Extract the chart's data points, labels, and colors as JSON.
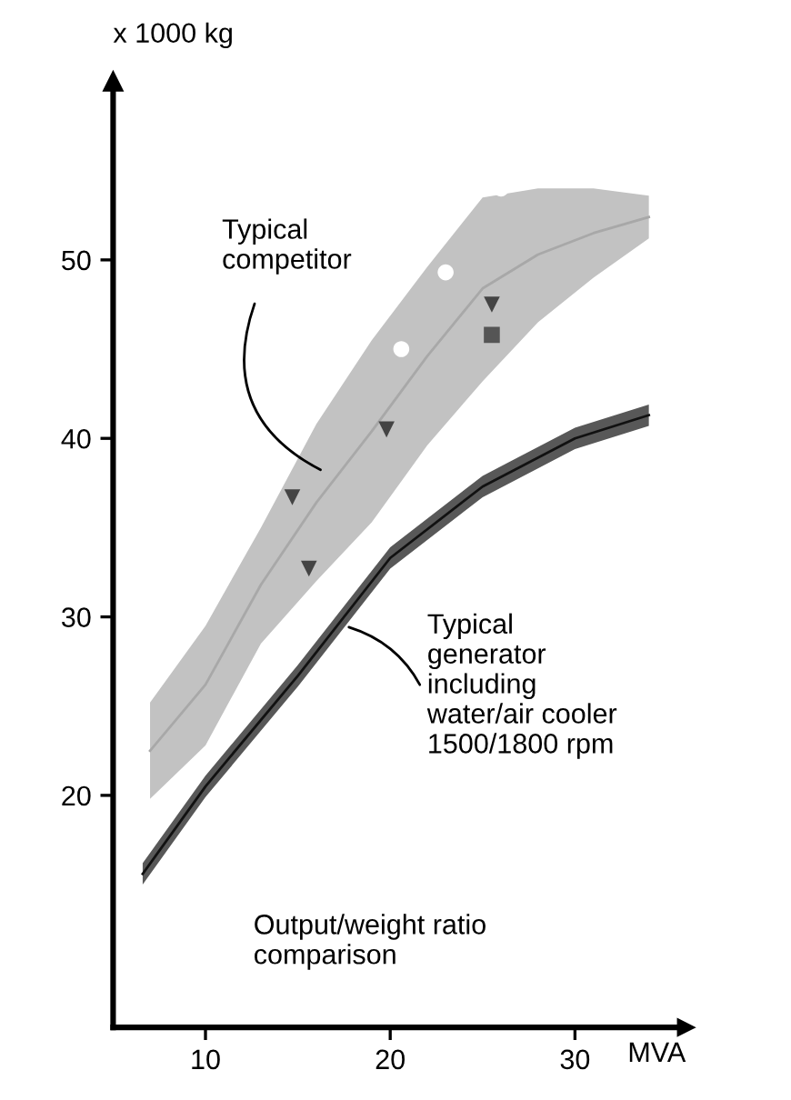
{
  "chart_data": {
    "type": "line",
    "ylabel": "x 1000 kg",
    "xlabel": "MVA",
    "x": [
      7,
      10,
      13,
      16,
      19,
      22,
      25,
      28,
      31,
      34
    ],
    "xlim": [
      5,
      36
    ],
    "ylim": [
      7,
      60
    ],
    "xticks": [
      10,
      20,
      30
    ],
    "yticks": [
      20,
      30,
      40,
      50
    ],
    "grid": false,
    "series": [
      {
        "color": "#a8a8a8",
        "values": [
          22.5,
          26.2,
          31.8,
          36.4,
          40.4,
          44.6,
          48.4,
          50.3,
          51.5,
          52.4
        ],
        "lower": [
          19.8,
          22.8,
          28.5,
          32,
          35.3,
          39.6,
          43.2,
          46.5,
          49,
          51.2
        ],
        "upper": [
          25.2,
          29.5,
          35,
          40.8,
          45.5,
          49.6,
          53.5,
          54,
          54,
          53.6
        ]
      },
      {
        "color": "#111111",
        "x": [
          6.6,
          10,
          15,
          20,
          25,
          30,
          34
        ],
        "values": [
          15.6,
          20.5,
          26.7,
          33.3,
          37.3,
          40,
          41.3
        ],
        "lower": [
          15,
          19.9,
          26.1,
          32.7,
          36.7,
          39.4,
          40.7
        ],
        "upper": [
          16.2,
          21.1,
          27.3,
          33.9,
          37.9,
          40.6,
          41.9
        ]
      },
      {
        "type": "scatter",
        "marker": "triangle",
        "color": "#444444",
        "x": [
          14.7,
          15.6,
          19.8,
          25.5
        ],
        "values": [
          36.7,
          32.7,
          40.5,
          47.5
        ]
      },
      {
        "type": "scatter",
        "marker": "square",
        "color": "#555555",
        "x": [
          25.5
        ],
        "values": [
          45.8
        ]
      },
      {
        "type": "scatter",
        "marker": "circle",
        "color": "#ffffff",
        "x": [
          20.6,
          23,
          26
        ],
        "values": [
          45,
          49.3,
          54
        ]
      }
    ],
    "annotations": [
      "Typical\ncompetitor",
      {
        "text": "Typical\ngenerator\nincluding\nwater/air cooler\n1500/1800 rpm",
        "x": 17.5,
        "y": 29.5
      },
      "Output/weight ratio\ncomparison"
    ]
  }
}
